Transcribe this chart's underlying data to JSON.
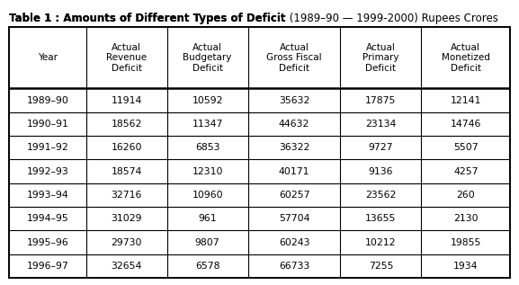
{
  "title_bold": "Table 1 : Amounts of Different Types of Deficit",
  "title_normal": " (1989–90 — 1999-2000) Rupees Crores",
  "col_headers": [
    "Year",
    "Actual\nRevenue\nDeficit",
    "Actual\nBudgetary\nDeficit",
    "Actual\nGross Fiscal\nDeficit",
    "Actual\nPrimary\nDeficit",
    "Actual\nMonetized\nDeficit"
  ],
  "rows": [
    [
      "1989–90",
      "11914",
      "10592",
      "35632",
      "17875",
      "12141"
    ],
    [
      "1990–91",
      "18562",
      "11347",
      "44632",
      "23134",
      "14746"
    ],
    [
      "1991–92",
      "16260",
      "6853",
      "36322",
      "9727",
      "5507"
    ],
    [
      "1992–93",
      "18574",
      "12310",
      "40171",
      "9136",
      "4257"
    ],
    [
      "1993–94",
      "32716",
      "10960",
      "60257",
      "23562",
      "260"
    ],
    [
      "1994–95",
      "31029",
      "961",
      "57704",
      "13655",
      "2130"
    ],
    [
      "1995–96",
      "29730",
      "9807",
      "60243",
      "10212",
      "19855"
    ],
    [
      "1996–97",
      "32654",
      "6578",
      "66733",
      "7255",
      "1934"
    ]
  ],
  "col_widths_rel": [
    1.0,
    1.05,
    1.05,
    1.2,
    1.05,
    1.15
  ],
  "background_color": "#ffffff",
  "border_color": "#000000",
  "text_color": "#000000",
  "title_fontsize": 8.5,
  "header_fontsize": 7.5,
  "data_fontsize": 7.8,
  "fig_width": 5.77,
  "fig_height": 3.17,
  "dpi": 100
}
